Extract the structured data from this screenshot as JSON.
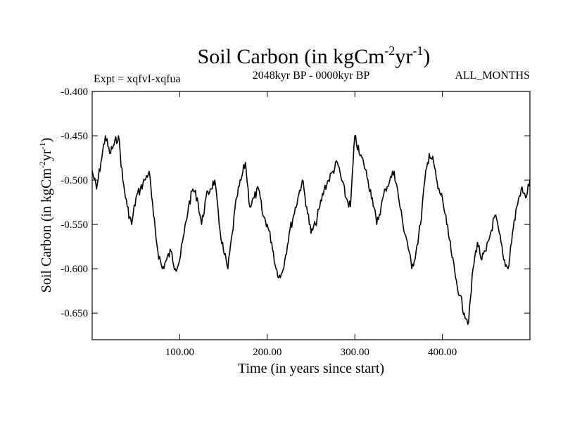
{
  "chart_data": {
    "type": "line",
    "title_main": "Soil Carbon (in kgCm",
    "title_exp1": "-2",
    "title_mid": "yr",
    "title_exp2": "-1",
    "title_close": ")",
    "subtitle": "2048kyr BP - 0000kyr BP",
    "left_label": "Expt = xqfvI-xqfua",
    "right_label": "ALL_MONTHS",
    "xlabel": "Time (in years since start)",
    "ylabel_main": "Soil Carbon (in kgCm",
    "ylabel_exp1": "-2",
    "ylabel_mid": "yr",
    "ylabel_exp2": "-1",
    "ylabel_close": ")",
    "xlim": [
      0,
      500
    ],
    "ylim": [
      -0.68,
      -0.4
    ],
    "xticks": [
      100,
      200,
      300,
      400
    ],
    "xtick_labels": [
      "100.00",
      "200.00",
      "300.00",
      "400.00"
    ],
    "yticks": [
      -0.4,
      -0.45,
      -0.5,
      -0.55,
      -0.6,
      -0.65
    ],
    "ytick_labels": [
      "-0.400",
      "-0.450",
      "-0.500",
      "-0.550",
      "-0.600",
      "-0.650"
    ],
    "grid": false,
    "series": [
      {
        "name": "soil-carbon",
        "x": [
          0,
          5,
          10,
          15,
          20,
          25,
          30,
          35,
          40,
          45,
          50,
          55,
          60,
          65,
          70,
          75,
          80,
          85,
          90,
          95,
          100,
          105,
          110,
          115,
          120,
          125,
          130,
          135,
          140,
          145,
          150,
          155,
          160,
          165,
          170,
          175,
          180,
          185,
          190,
          195,
          200,
          205,
          210,
          215,
          220,
          225,
          230,
          235,
          240,
          245,
          250,
          255,
          260,
          265,
          270,
          275,
          280,
          285,
          290,
          295,
          300,
          305,
          310,
          315,
          320,
          325,
          330,
          335,
          340,
          345,
          350,
          355,
          360,
          365,
          370,
          375,
          380,
          385,
          390,
          395,
          400,
          405,
          410,
          415,
          420,
          425,
          430,
          435,
          440,
          445,
          450,
          455,
          460,
          465,
          470,
          475,
          480,
          485,
          490,
          495,
          500
        ],
        "values": [
          -0.49,
          -0.51,
          -0.48,
          -0.45,
          -0.47,
          -0.46,
          -0.45,
          -0.5,
          -0.53,
          -0.55,
          -0.52,
          -0.51,
          -0.5,
          -0.49,
          -0.54,
          -0.58,
          -0.6,
          -0.59,
          -0.58,
          -0.6,
          -0.59,
          -0.56,
          -0.53,
          -0.51,
          -0.52,
          -0.55,
          -0.52,
          -0.51,
          -0.5,
          -0.55,
          -0.58,
          -0.6,
          -0.56,
          -0.52,
          -0.5,
          -0.48,
          -0.53,
          -0.52,
          -0.51,
          -0.54,
          -0.55,
          -0.57,
          -0.6,
          -0.61,
          -0.59,
          -0.56,
          -0.54,
          -0.52,
          -0.5,
          -0.53,
          -0.56,
          -0.55,
          -0.53,
          -0.51,
          -0.5,
          -0.49,
          -0.48,
          -0.5,
          -0.52,
          -0.53,
          -0.45,
          -0.47,
          -0.48,
          -0.5,
          -0.52,
          -0.55,
          -0.53,
          -0.51,
          -0.5,
          -0.49,
          -0.52,
          -0.55,
          -0.57,
          -0.6,
          -0.58,
          -0.55,
          -0.5,
          -0.47,
          -0.48,
          -0.51,
          -0.52,
          -0.55,
          -0.58,
          -0.61,
          -0.63,
          -0.65,
          -0.66,
          -0.6,
          -0.57,
          -0.59,
          -0.58,
          -0.56,
          -0.54,
          -0.56,
          -0.59,
          -0.6,
          -0.56,
          -0.53,
          -0.51,
          -0.52,
          -0.5
        ]
      }
    ]
  }
}
